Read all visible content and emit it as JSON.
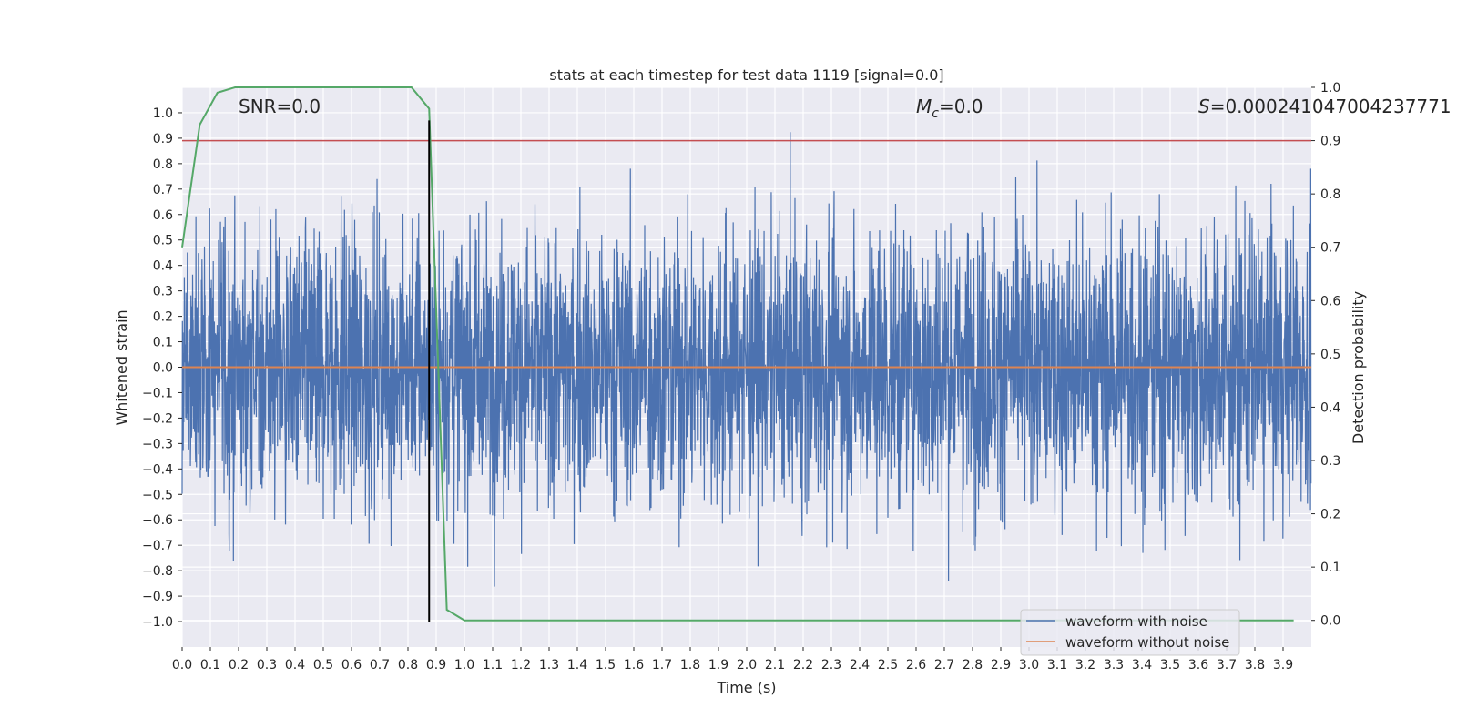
{
  "chart_data": {
    "type": "line",
    "title": "stats at each timestep for test data 1119 [signal=0.0]",
    "xlabel": "Time (s)",
    "ylabel": "Whitened strain",
    "y2label": "Detection probability",
    "xlim": [
      0.0,
      4.0
    ],
    "ylim": [
      -1.1,
      1.1
    ],
    "y2lim": [
      -0.05,
      1.0
    ],
    "x_ticks": [
      0.0,
      0.1,
      0.2,
      0.3,
      0.4,
      0.5,
      0.6,
      0.7,
      0.8,
      0.9,
      1.0,
      1.1,
      1.2,
      1.3,
      1.4,
      1.5,
      1.6,
      1.7,
      1.8,
      1.9,
      2.0,
      2.1,
      2.2,
      2.3,
      2.4,
      2.5,
      2.6,
      2.7,
      2.8,
      2.9,
      3.0,
      3.1,
      3.2,
      3.3,
      3.4,
      3.5,
      3.6,
      3.7,
      3.8,
      3.9
    ],
    "x_tick_labels": [
      "0.0",
      "0.1",
      "0.2",
      "0.3",
      "0.4",
      "0.5",
      "0.6",
      "0.7",
      "0.8",
      "0.9",
      "1.0",
      "1.1",
      "1.2",
      "1.3",
      "1.4",
      "1.5",
      "1.6",
      "1.7",
      "1.8",
      "1.9",
      "2.0",
      "2.1",
      "2.2",
      "2.3",
      "2.4",
      "2.5",
      "2.6",
      "2.7",
      "2.8",
      "2.9",
      "3.0",
      "3.1",
      "3.2",
      "3.3",
      "3.4",
      "3.5",
      "3.6",
      "3.7",
      "3.8",
      "3.9"
    ],
    "y_ticks": [
      1.0,
      0.9,
      0.8,
      0.7,
      0.6,
      0.5,
      0.4,
      0.3,
      0.2,
      0.1,
      0.0,
      -0.1,
      -0.2,
      -0.3,
      -0.4,
      -0.5,
      -0.6,
      -0.7,
      -0.8,
      -0.9,
      -1.0
    ],
    "y_tick_labels": [
      "1.0",
      "0.9",
      "0.8",
      "0.7",
      "0.6",
      "0.5",
      "0.4",
      "0.3",
      "0.2",
      "0.1",
      "0.0",
      "−0.1",
      "−0.2",
      "−0.3",
      "−0.4",
      "−0.5",
      "−0.6",
      "−0.7",
      "−0.8",
      "−0.9",
      "−1.0"
    ],
    "y2_ticks": [
      1.0,
      0.9,
      0.8,
      0.7,
      0.6,
      0.5,
      0.4,
      0.3,
      0.2,
      0.1,
      0.0
    ],
    "y2_tick_labels": [
      "1.0",
      "0.9",
      "0.8",
      "0.7",
      "0.6",
      "0.5",
      "0.4",
      "0.3",
      "0.2",
      "0.1",
      "0.0"
    ],
    "annotations": {
      "snr": "SNR=0.0",
      "mc_symbol": "M",
      "mc_sub": "c",
      "mc_value": "=0.0",
      "s_symbol": "S",
      "s_value": "=0.000241047004237771"
    },
    "threshold": {
      "axis": "y2",
      "value": 0.9,
      "color": "#c44e52"
    },
    "marker": {
      "x": 0.875,
      "y_range": [
        -1.0,
        0.97
      ],
      "color": "#000000"
    },
    "noise_series": {
      "name": "waveform with noise",
      "color": "#4c72b0",
      "seed": 1119,
      "sample_rate": 1024,
      "amplitude_sigma": 0.27,
      "clip": [
        -1.0,
        0.96
      ]
    },
    "series": [
      {
        "name": "waveform without noise",
        "axis": "y",
        "color": "#dd8452",
        "x": [
          0.0,
          4.0
        ],
        "y": [
          0.0,
          0.0
        ]
      },
      {
        "name": "detection probability",
        "axis": "y2",
        "color": "#55a868",
        "x": [
          0.0,
          0.0625,
          0.125,
          0.1875,
          0.25,
          0.3125,
          0.375,
          0.4375,
          0.5,
          0.5625,
          0.625,
          0.6875,
          0.75,
          0.8125,
          0.875,
          0.9375,
          1.0,
          1.0625,
          1.125,
          1.5,
          2.0,
          2.5,
          3.0,
          3.5,
          3.9375
        ],
        "y": [
          0.7,
          0.93,
          0.99,
          1.0,
          1.0,
          1.0,
          1.0,
          1.0,
          1.0,
          1.0,
          1.0,
          1.0,
          1.0,
          1.0,
          0.96,
          0.02,
          0.0,
          0.0,
          0.0,
          0.0,
          0.0,
          0.0,
          0.0,
          0.0,
          0.0
        ]
      }
    ],
    "legend": {
      "position": "lower-right",
      "entries": [
        {
          "label": "waveform with noise",
          "color": "#4c72b0"
        },
        {
          "label": "waveform without noise",
          "color": "#dd8452"
        }
      ]
    }
  }
}
